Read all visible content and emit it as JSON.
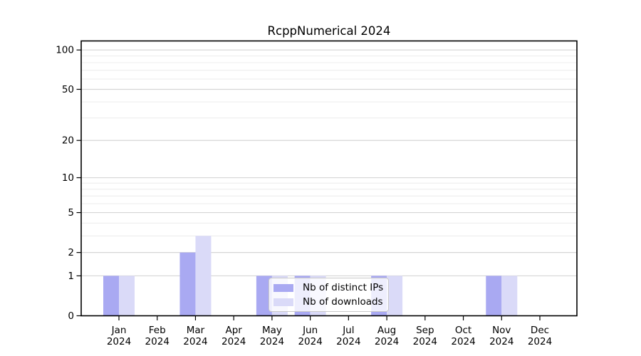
{
  "figure": {
    "background": "#ffffff"
  },
  "chart_data": {
    "type": "bar",
    "title": "RcppNumerical 2024",
    "months": [
      "Jan",
      "Feb",
      "Mar",
      "Apr",
      "May",
      "Jun",
      "Jul",
      "Aug",
      "Sep",
      "Oct",
      "Nov",
      "Dec"
    ],
    "year": "2024",
    "series": [
      {
        "name": "Nb of distinct IPs",
        "color": "#a9a9f2",
        "values": [
          1,
          0,
          2,
          0,
          1,
          1,
          0,
          1,
          0,
          0,
          1,
          0
        ]
      },
      {
        "name": "Nb of downloads",
        "color": "#dadaf8",
        "values": [
          1,
          0,
          3,
          0,
          1,
          1,
          0,
          1,
          0,
          0,
          1,
          0
        ]
      }
    ],
    "y_axis": {
      "scale": "log1p",
      "ticks": [
        0,
        1,
        2,
        5,
        10,
        20,
        50,
        100
      ],
      "minor_gridlines": [
        3,
        4,
        6,
        7,
        8,
        9,
        30,
        40,
        60,
        70,
        80,
        90
      ],
      "max_value": 117
    },
    "legend_position": "lower center",
    "grid": "on"
  },
  "colors": {
    "axis": "#000000",
    "text": "#000000",
    "grid_major": "#d6d6d6",
    "grid_minor": "#ececec",
    "legend_border": "#c9c9c9"
  }
}
